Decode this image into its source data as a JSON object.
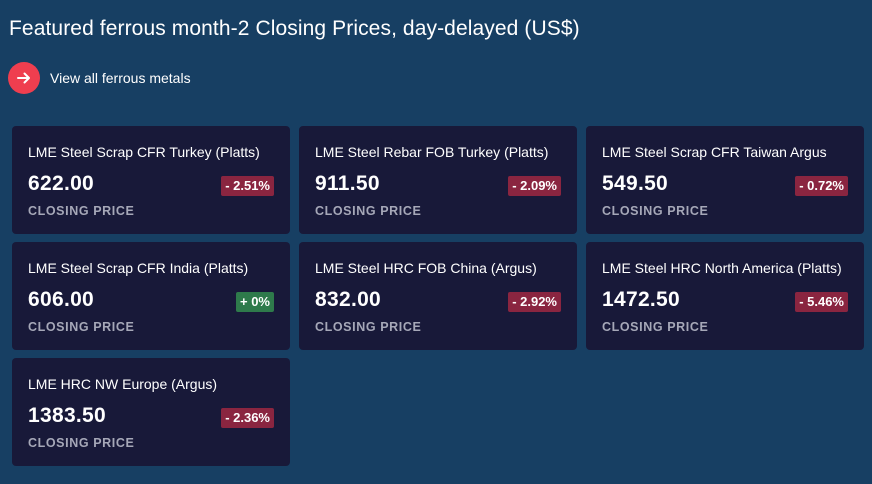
{
  "header": {
    "title": "Featured ferrous month-2 Closing Prices, day-delayed (US$)",
    "view_all_label": "View all ferrous metals"
  },
  "colors": {
    "background": "#173f63",
    "card": "#181939",
    "accent": "#ef3e4f",
    "negative_badge": "#8a2540",
    "positive_badge": "#2e7a4b"
  },
  "cards": [
    {
      "name": "LME Steel Scrap CFR Turkey (Platts)",
      "price": "622.00",
      "change": "- 2.51%",
      "direction": "down",
      "label": "CLOSING PRICE"
    },
    {
      "name": "LME Steel Rebar FOB Turkey (Platts)",
      "price": "911.50",
      "change": "- 2.09%",
      "direction": "down",
      "label": "CLOSING PRICE"
    },
    {
      "name": "LME Steel Scrap CFR Taiwan Argus",
      "price": "549.50",
      "change": "- 0.72%",
      "direction": "down",
      "label": "CLOSING PRICE"
    },
    {
      "name": "LME Steel Scrap CFR India (Platts)",
      "price": "606.00",
      "change": "+ 0%",
      "direction": "up",
      "label": "CLOSING PRICE"
    },
    {
      "name": "LME Steel HRC FOB China (Argus)",
      "price": "832.00",
      "change": "- 2.92%",
      "direction": "down",
      "label": "CLOSING PRICE"
    },
    {
      "name": "LME Steel HRC North America (Platts)",
      "price": "1472.50",
      "change": "- 5.46%",
      "direction": "down",
      "label": "CLOSING PRICE"
    },
    {
      "name": "LME HRC NW Europe (Argus)",
      "price": "1383.50",
      "change": "- 2.36%",
      "direction": "down",
      "label": "CLOSING PRICE"
    }
  ]
}
